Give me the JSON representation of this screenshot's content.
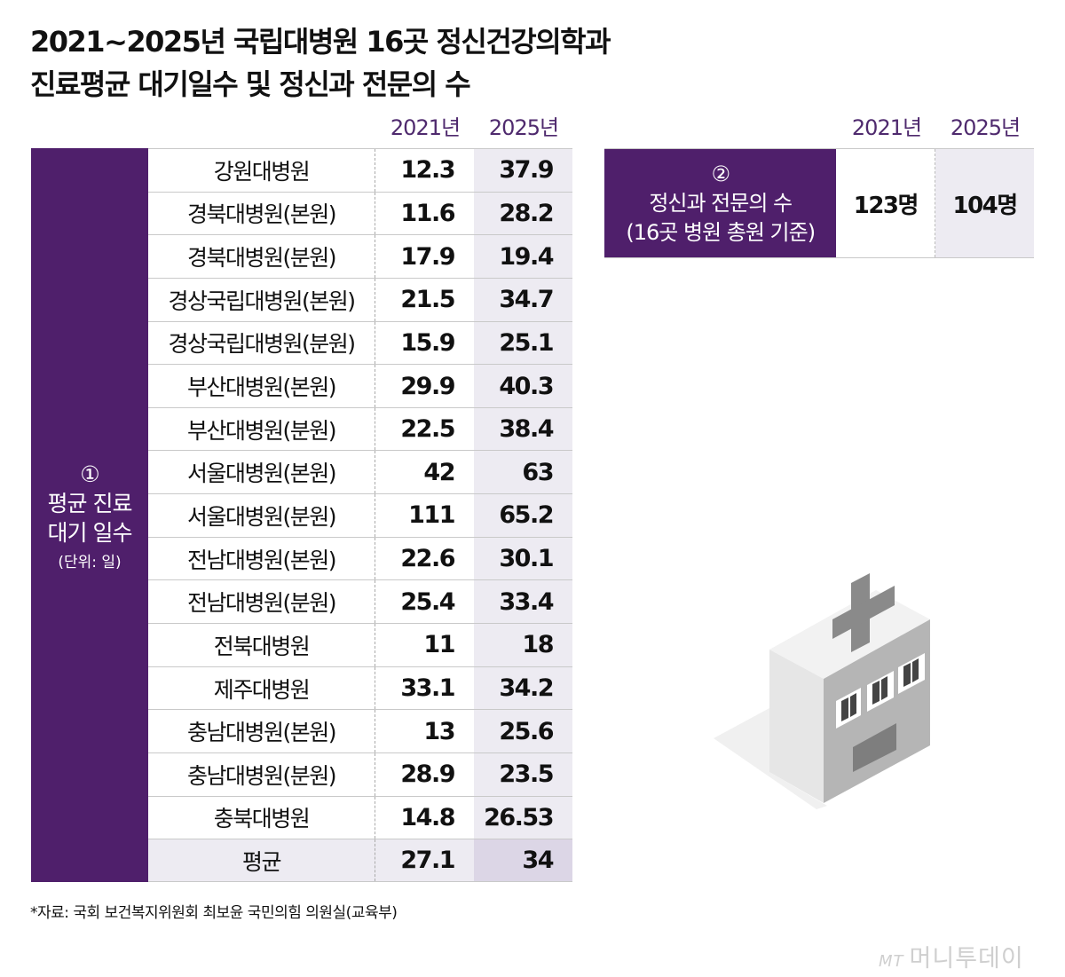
{
  "title": {
    "line1": "2021~2025년 국립대병원 16곳 정신건강의학과",
    "line2": "진료평균 대기일수 및 정신과 전문의 수"
  },
  "colors": {
    "purple": "#4f1f6b",
    "lavender": "#edebf2",
    "lavender_dark": "#dcd6e6"
  },
  "chart_data": [
    {
      "type": "table",
      "row_header": {
        "num": "①",
        "line1": "평균 진료",
        "line2": "대기 일수",
        "unit": "(단위: 일)"
      },
      "columns": [
        "2021년",
        "2025년"
      ],
      "rows": [
        {
          "name": "강원대병원",
          "y2021": "12.3",
          "y2025": "37.9"
        },
        {
          "name": "경북대병원(본원)",
          "y2021": "11.6",
          "y2025": "28.2"
        },
        {
          "name": "경북대병원(분원)",
          "y2021": "17.9",
          "y2025": "19.4"
        },
        {
          "name": "경상국립대병원(본원)",
          "y2021": "21.5",
          "y2025": "34.7"
        },
        {
          "name": "경상국립대병원(분원)",
          "y2021": "15.9",
          "y2025": "25.1"
        },
        {
          "name": "부산대병원(본원)",
          "y2021": "29.9",
          "y2025": "40.3"
        },
        {
          "name": "부산대병원(분원)",
          "y2021": "22.5",
          "y2025": "38.4"
        },
        {
          "name": "서울대병원(본원)",
          "y2021": "42",
          "y2025": "63"
        },
        {
          "name": "서울대병원(분원)",
          "y2021": "111",
          "y2025": "65.2"
        },
        {
          "name": "전남대병원(본원)",
          "y2021": "22.6",
          "y2025": "30.1"
        },
        {
          "name": "전남대병원(분원)",
          "y2021": "25.4",
          "y2025": "33.4"
        },
        {
          "name": "전북대병원",
          "y2021": "11",
          "y2025": "18"
        },
        {
          "name": "제주대병원",
          "y2021": "33.1",
          "y2025": "34.2"
        },
        {
          "name": "충남대병원(본원)",
          "y2021": "13",
          "y2025": "25.6"
        },
        {
          "name": "충남대병원(분원)",
          "y2021": "28.9",
          "y2025": "23.5"
        },
        {
          "name": "충북대병원",
          "y2021": "14.8",
          "y2025": "26.53"
        },
        {
          "name": "평균",
          "y2021": "27.1",
          "y2025": "34"
        }
      ]
    },
    {
      "type": "table",
      "columns": [
        "2021년",
        "2025년"
      ],
      "row_header": {
        "num": "②",
        "line1": "정신과 전문의 수",
        "line2": "(16곳 병원 총원 기준)"
      },
      "values": [
        "123명",
        "104명"
      ]
    }
  ],
  "footnote": "*자료: 국회 보건복지위원회 최보윤 국민의힘 의원실(교육부)",
  "logo": {
    "mark": "MT",
    "text": "머니투데이"
  }
}
